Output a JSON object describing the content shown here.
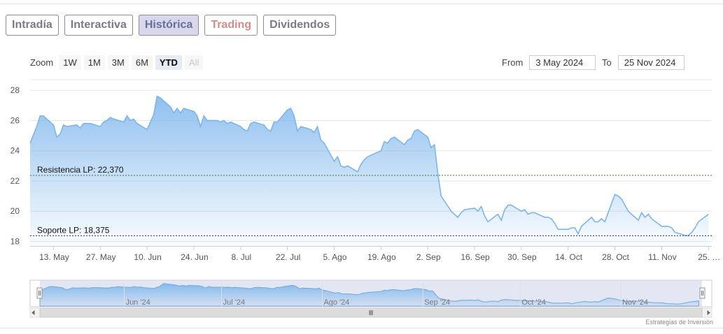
{
  "tabs": [
    {
      "label": "Intradía",
      "active": false
    },
    {
      "label": "Interactiva",
      "active": false
    },
    {
      "label": "Histórica",
      "active": true
    },
    {
      "label": "Trading",
      "active": false
    },
    {
      "label": "Dividendos",
      "active": false
    }
  ],
  "zoom": {
    "label": "Zoom",
    "buttons": [
      "1W",
      "1M",
      "3M",
      "6M",
      "YTD",
      "All"
    ],
    "selected": "YTD",
    "disabled": "All"
  },
  "range": {
    "from_label": "From",
    "from_value": "3 May 2024",
    "to_label": "To",
    "to_value": "25 Nov 2024"
  },
  "credits": "Estrategias de Inversión",
  "colors": {
    "line": "#7cb5ec",
    "resistance": "#2e7d32",
    "support": "#333333",
    "nav_mask": "#d7dcee"
  },
  "chart_data": {
    "type": "area",
    "x_start": "2024-05-06",
    "ylim": [
      17.7,
      28.7
    ],
    "yticks": [
      18,
      20,
      22,
      24,
      26,
      28
    ],
    "xtick_labels": [
      {
        "label": "13. May",
        "date": "2024-05-13"
      },
      {
        "label": "27. May",
        "date": "2024-05-27"
      },
      {
        "label": "10. Jun",
        "date": "2024-06-10"
      },
      {
        "label": "24. Jun",
        "date": "2024-06-24"
      },
      {
        "label": "8. Jul",
        "date": "2024-07-08"
      },
      {
        "label": "22. Jul",
        "date": "2024-07-22"
      },
      {
        "label": "5. Ago",
        "date": "2024-08-05"
      },
      {
        "label": "19. Ago",
        "date": "2024-08-19"
      },
      {
        "label": "2. Sep",
        "date": "2024-09-02"
      },
      {
        "label": "16. Sep",
        "date": "2024-09-16"
      },
      {
        "label": "30. Sep",
        "date": "2024-09-30"
      },
      {
        "label": "14. Oct",
        "date": "2024-10-14"
      },
      {
        "label": "28. Oct",
        "date": "2024-10-28"
      },
      {
        "label": "11. Nov",
        "date": "2024-11-11"
      },
      {
        "label": "25. …",
        "date": "2024-11-25"
      }
    ],
    "lines": [
      {
        "label": "Resistencia LP: 22,370",
        "value": 22.37
      },
      {
        "label": "Soporte LP: 18,375",
        "value": 18.375
      }
    ],
    "navigator_labels": [
      {
        "label": "Jun '24",
        "date": "2024-06-01"
      },
      {
        "label": "Jul '24",
        "date": "2024-07-01"
      },
      {
        "label": "Ago '24",
        "date": "2024-08-01"
      },
      {
        "label": "Sep '24",
        "date": "2024-09-01"
      },
      {
        "label": "Oct '24",
        "date": "2024-10-01"
      },
      {
        "label": "Nov '24",
        "date": "2024-11-01"
      }
    ],
    "series": [
      {
        "date": "2024-05-06",
        "value": 24.5
      },
      {
        "date": "2024-05-08",
        "value": 25.6
      },
      {
        "date": "2024-05-09",
        "value": 26.3
      },
      {
        "date": "2024-05-10",
        "value": 26.3
      },
      {
        "date": "2024-05-13",
        "value": 25.7
      },
      {
        "date": "2024-05-14",
        "value": 24.9
      },
      {
        "date": "2024-05-15",
        "value": 25.1
      },
      {
        "date": "2024-05-16",
        "value": 25.7
      },
      {
        "date": "2024-05-17",
        "value": 25.6
      },
      {
        "date": "2024-05-20",
        "value": 25.7
      },
      {
        "date": "2024-05-21",
        "value": 25.5
      },
      {
        "date": "2024-05-22",
        "value": 25.8
      },
      {
        "date": "2024-05-23",
        "value": 25.8
      },
      {
        "date": "2024-05-24",
        "value": 25.8
      },
      {
        "date": "2024-05-27",
        "value": 25.6
      },
      {
        "date": "2024-05-28",
        "value": 25.9
      },
      {
        "date": "2024-05-29",
        "value": 26.0
      },
      {
        "date": "2024-05-30",
        "value": 26.2
      },
      {
        "date": "2024-05-31",
        "value": 26.1
      },
      {
        "date": "2024-06-03",
        "value": 25.9
      },
      {
        "date": "2024-06-04",
        "value": 26.3
      },
      {
        "date": "2024-06-05",
        "value": 26.0
      },
      {
        "date": "2024-06-06",
        "value": 26.1
      },
      {
        "date": "2024-06-07",
        "value": 25.8
      },
      {
        "date": "2024-06-10",
        "value": 25.4
      },
      {
        "date": "2024-06-11",
        "value": 25.9
      },
      {
        "date": "2024-06-12",
        "value": 26.4
      },
      {
        "date": "2024-06-13",
        "value": 27.6
      },
      {
        "date": "2024-06-14",
        "value": 27.5
      },
      {
        "date": "2024-06-17",
        "value": 26.9
      },
      {
        "date": "2024-06-18",
        "value": 26.5
      },
      {
        "date": "2024-06-19",
        "value": 26.8
      },
      {
        "date": "2024-06-20",
        "value": 26.5
      },
      {
        "date": "2024-06-21",
        "value": 26.8
      },
      {
        "date": "2024-06-24",
        "value": 26.6
      },
      {
        "date": "2024-06-25",
        "value": 26.3
      },
      {
        "date": "2024-06-26",
        "value": 25.6
      },
      {
        "date": "2024-06-27",
        "value": 26.3
      },
      {
        "date": "2024-06-28",
        "value": 26.0
      },
      {
        "date": "2024-07-01",
        "value": 26.0
      },
      {
        "date": "2024-07-02",
        "value": 25.9
      },
      {
        "date": "2024-07-03",
        "value": 26.0
      },
      {
        "date": "2024-07-04",
        "value": 25.8
      },
      {
        "date": "2024-07-05",
        "value": 25.9
      },
      {
        "date": "2024-07-08",
        "value": 25.6
      },
      {
        "date": "2024-07-09",
        "value": 25.4
      },
      {
        "date": "2024-07-10",
        "value": 25.3
      },
      {
        "date": "2024-07-11",
        "value": 25.8
      },
      {
        "date": "2024-07-12",
        "value": 25.9
      },
      {
        "date": "2024-07-15",
        "value": 25.7
      },
      {
        "date": "2024-07-16",
        "value": 25.4
      },
      {
        "date": "2024-07-17",
        "value": 25.3
      },
      {
        "date": "2024-07-18",
        "value": 25.9
      },
      {
        "date": "2024-07-19",
        "value": 25.9
      },
      {
        "date": "2024-07-22",
        "value": 26.7
      },
      {
        "date": "2024-07-23",
        "value": 26.8
      },
      {
        "date": "2024-07-24",
        "value": 26.3
      },
      {
        "date": "2024-07-25",
        "value": 25.3
      },
      {
        "date": "2024-07-26",
        "value": 25.6
      },
      {
        "date": "2024-07-29",
        "value": 25.4
      },
      {
        "date": "2024-07-30",
        "value": 25.2
      },
      {
        "date": "2024-07-31",
        "value": 25.6
      },
      {
        "date": "2024-08-01",
        "value": 24.7
      },
      {
        "date": "2024-08-02",
        "value": 24.5
      },
      {
        "date": "2024-08-05",
        "value": 23.3
      },
      {
        "date": "2024-08-06",
        "value": 23.6
      },
      {
        "date": "2024-08-07",
        "value": 23.0
      },
      {
        "date": "2024-08-08",
        "value": 22.9
      },
      {
        "date": "2024-08-09",
        "value": 23.0
      },
      {
        "date": "2024-08-12",
        "value": 22.6
      },
      {
        "date": "2024-08-13",
        "value": 23.1
      },
      {
        "date": "2024-08-14",
        "value": 23.4
      },
      {
        "date": "2024-08-15",
        "value": 23.6
      },
      {
        "date": "2024-08-16",
        "value": 23.7
      },
      {
        "date": "2024-08-19",
        "value": 24.0
      },
      {
        "date": "2024-08-20",
        "value": 24.6
      },
      {
        "date": "2024-08-21",
        "value": 24.5
      },
      {
        "date": "2024-08-22",
        "value": 24.8
      },
      {
        "date": "2024-08-23",
        "value": 24.9
      },
      {
        "date": "2024-08-26",
        "value": 24.4
      },
      {
        "date": "2024-08-27",
        "value": 24.7
      },
      {
        "date": "2024-08-28",
        "value": 24.8
      },
      {
        "date": "2024-08-29",
        "value": 25.3
      },
      {
        "date": "2024-08-30",
        "value": 25.4
      },
      {
        "date": "2024-09-02",
        "value": 24.9
      },
      {
        "date": "2024-09-03",
        "value": 24.2
      },
      {
        "date": "2024-09-04",
        "value": 24.4
      },
      {
        "date": "2024-09-05",
        "value": 22.5
      },
      {
        "date": "2024-09-06",
        "value": 21.0
      },
      {
        "date": "2024-09-09",
        "value": 20.0
      },
      {
        "date": "2024-09-10",
        "value": 19.8
      },
      {
        "date": "2024-09-11",
        "value": 19.6
      },
      {
        "date": "2024-09-12",
        "value": 19.9
      },
      {
        "date": "2024-09-13",
        "value": 20.1
      },
      {
        "date": "2024-09-16",
        "value": 20.2
      },
      {
        "date": "2024-09-17",
        "value": 20.0
      },
      {
        "date": "2024-09-18",
        "value": 20.3
      },
      {
        "date": "2024-09-19",
        "value": 19.7
      },
      {
        "date": "2024-09-20",
        "value": 19.3
      },
      {
        "date": "2024-09-23",
        "value": 19.8
      },
      {
        "date": "2024-09-24",
        "value": 19.4
      },
      {
        "date": "2024-09-25",
        "value": 20.1
      },
      {
        "date": "2024-09-26",
        "value": 20.4
      },
      {
        "date": "2024-09-27",
        "value": 20.4
      },
      {
        "date": "2024-09-30",
        "value": 20.0
      },
      {
        "date": "2024-10-01",
        "value": 20.1
      },
      {
        "date": "2024-10-02",
        "value": 19.8
      },
      {
        "date": "2024-10-03",
        "value": 19.9
      },
      {
        "date": "2024-10-04",
        "value": 19.9
      },
      {
        "date": "2024-10-07",
        "value": 19.6
      },
      {
        "date": "2024-10-08",
        "value": 19.6
      },
      {
        "date": "2024-10-09",
        "value": 19.5
      },
      {
        "date": "2024-10-10",
        "value": 19.2
      },
      {
        "date": "2024-10-11",
        "value": 18.8
      },
      {
        "date": "2024-10-14",
        "value": 18.8
      },
      {
        "date": "2024-10-15",
        "value": 18.9
      },
      {
        "date": "2024-10-16",
        "value": 18.9
      },
      {
        "date": "2024-10-17",
        "value": 18.5
      },
      {
        "date": "2024-10-18",
        "value": 19.0
      },
      {
        "date": "2024-10-21",
        "value": 19.6
      },
      {
        "date": "2024-10-22",
        "value": 19.3
      },
      {
        "date": "2024-10-23",
        "value": 19.3
      },
      {
        "date": "2024-10-24",
        "value": 19.5
      },
      {
        "date": "2024-10-25",
        "value": 19.3
      },
      {
        "date": "2024-10-28",
        "value": 21.1
      },
      {
        "date": "2024-10-29",
        "value": 21.0
      },
      {
        "date": "2024-10-30",
        "value": 20.8
      },
      {
        "date": "2024-10-31",
        "value": 20.4
      },
      {
        "date": "2024-11-01",
        "value": 20.0
      },
      {
        "date": "2024-11-04",
        "value": 19.4
      },
      {
        "date": "2024-11-05",
        "value": 19.9
      },
      {
        "date": "2024-11-06",
        "value": 19.6
      },
      {
        "date": "2024-11-07",
        "value": 19.8
      },
      {
        "date": "2024-11-08",
        "value": 19.5
      },
      {
        "date": "2024-11-11",
        "value": 19.0
      },
      {
        "date": "2024-11-12",
        "value": 19.0
      },
      {
        "date": "2024-11-13",
        "value": 19.0
      },
      {
        "date": "2024-11-14",
        "value": 18.9
      },
      {
        "date": "2024-11-15",
        "value": 18.6
      },
      {
        "date": "2024-11-18",
        "value": 18.4
      },
      {
        "date": "2024-11-19",
        "value": 18.4
      },
      {
        "date": "2024-11-20",
        "value": 18.6
      },
      {
        "date": "2024-11-21",
        "value": 18.9
      },
      {
        "date": "2024-11-22",
        "value": 19.3
      },
      {
        "date": "2024-11-25",
        "value": 19.8
      }
    ]
  }
}
